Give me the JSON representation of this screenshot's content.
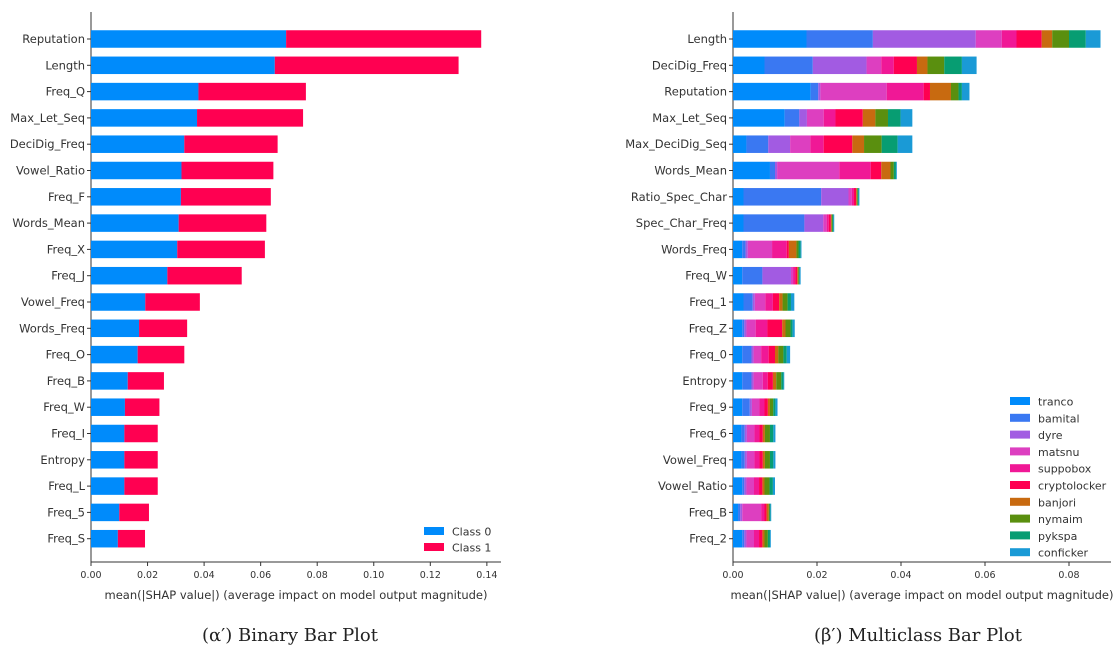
{
  "chart_data": [
    {
      "type": "bar",
      "orientation": "horizontal",
      "stacked": true,
      "caption": "(α′) Binary Bar Plot",
      "xlabel": "mean(|SHAP value|) (average impact on model output magnitude)",
      "xlim": [
        0,
        0.145
      ],
      "xticks": [
        "0.00",
        "0.02",
        "0.04",
        "0.06",
        "0.08",
        "0.10",
        "0.12",
        "0.14"
      ],
      "legend_position": "bottom-right",
      "categories": [
        "Reputation",
        "Length",
        "Freq_Q",
        "Max_Let_Seq",
        "DeciDig_Freq",
        "Vowel_Ratio",
        "Freq_F",
        "Words_Mean",
        "Freq_X",
        "Freq_J",
        "Vowel_Freq",
        "Words_Freq",
        "Freq_O",
        "Freq_B",
        "Freq_W",
        "Freq_I",
        "Entropy",
        "Freq_L",
        "Freq_5",
        "Freq_S"
      ],
      "series": [
        {
          "name": "Class 0",
          "color": "#008bfb",
          "values": [
            0.069,
            0.065,
            0.038,
            0.0375,
            0.033,
            0.032,
            0.0318,
            0.031,
            0.0305,
            0.027,
            0.0192,
            0.017,
            0.0165,
            0.013,
            0.012,
            0.0118,
            0.0118,
            0.0118,
            0.01,
            0.0095
          ]
        },
        {
          "name": "Class 1",
          "color": "#ff0051",
          "values": [
            0.069,
            0.065,
            0.038,
            0.0375,
            0.033,
            0.0325,
            0.0318,
            0.031,
            0.031,
            0.0263,
            0.0193,
            0.017,
            0.0165,
            0.0128,
            0.0122,
            0.0118,
            0.0118,
            0.0118,
            0.0105,
            0.0096
          ]
        }
      ]
    },
    {
      "type": "bar",
      "orientation": "horizontal",
      "stacked": true,
      "caption": "(β′) Multiclass Bar Plot",
      "xlabel": "mean(|SHAP value|) (average impact on model output magnitude)",
      "xlim": [
        0,
        0.09
      ],
      "xticks": [
        "0.00",
        "0.02",
        "0.04",
        "0.06",
        "0.08"
      ],
      "legend_position": "bottom-right",
      "categories": [
        "Length",
        "DeciDig_Freq",
        "Reputation",
        "Max_Let_Seq",
        "Max_DeciDig_Seq",
        "Words_Mean",
        "Ratio_Spec_Char",
        "Spec_Char_Freq",
        "Words_Freq",
        "Freq_W",
        "Freq_1",
        "Freq_Z",
        "Freq_0",
        "Entropy",
        "Freq_9",
        "Freq_6",
        "Vowel_Freq",
        "Vowel_Ratio",
        "Freq_B",
        "Freq_2"
      ],
      "series": [
        {
          "name": "tranco",
          "color": "#008bfb",
          "values": [
            0.0175,
            0.0075,
            0.0185,
            0.0123,
            0.0032,
            0.0088,
            0.0025,
            0.0025,
            0.0022,
            0.0022,
            0.0025,
            0.0022,
            0.0022,
            0.0022,
            0.0022,
            0.002,
            0.002,
            0.0022,
            0.0012,
            0.0022
          ]
        },
        {
          "name": "bamital",
          "color": "#3a78f2",
          "values": [
            0.0158,
            0.0115,
            0.0018,
            0.0035,
            0.0052,
            0.0012,
            0.0185,
            0.0145,
            0.0008,
            0.0048,
            0.0022,
            0.0005,
            0.0022,
            0.0022,
            0.0018,
            0.0008,
            0.0008,
            0.0005,
            0.0005,
            0.0005
          ]
        },
        {
          "name": "dyre",
          "color": "#a25be2",
          "values": [
            0.0245,
            0.0128,
            0.0005,
            0.0018,
            0.0052,
            0.0005,
            0.0065,
            0.0045,
            0.0005,
            0.0068,
            0.0005,
            0.0005,
            0.0005,
            0.0005,
            0.0005,
            0.0005,
            0.0005,
            0.0005,
            0.0005,
            0.0005
          ]
        },
        {
          "name": "matsnu",
          "color": "#dd3fc0",
          "values": [
            0.0062,
            0.0035,
            0.0158,
            0.004,
            0.0048,
            0.0148,
            0.0008,
            0.0008,
            0.0058,
            0.0005,
            0.0025,
            0.0022,
            0.0018,
            0.0022,
            0.0018,
            0.0018,
            0.0018,
            0.0018,
            0.0045,
            0.0018
          ]
        },
        {
          "name": "suppobox",
          "color": "#f01896",
          "values": [
            0.0035,
            0.003,
            0.0088,
            0.0028,
            0.0032,
            0.0075,
            0.0005,
            0.0005,
            0.0035,
            0.0005,
            0.0018,
            0.0028,
            0.0018,
            0.0012,
            0.0012,
            0.0012,
            0.0012,
            0.0012,
            0.0008,
            0.0012
          ]
        },
        {
          "name": "cryptolocker",
          "color": "#ff0051",
          "values": [
            0.006,
            0.0055,
            0.0015,
            0.0065,
            0.0068,
            0.0025,
            0.0005,
            0.0005,
            0.0005,
            0.0005,
            0.0015,
            0.0035,
            0.0015,
            0.0012,
            0.0008,
            0.0008,
            0.0008,
            0.0008,
            0.0005,
            0.0008
          ]
        },
        {
          "name": "banjori",
          "color": "#c86a10",
          "values": [
            0.0025,
            0.0025,
            0.005,
            0.003,
            0.0028,
            0.0022,
            0.0002,
            0.0002,
            0.0018,
            0.0002,
            0.0008,
            0.0008,
            0.0008,
            0.0008,
            0.0005,
            0.0005,
            0.0005,
            0.0005,
            0.0005,
            0.0005
          ]
        },
        {
          "name": "nymaim",
          "color": "#5a8f0f",
          "values": [
            0.004,
            0.004,
            0.0018,
            0.003,
            0.0042,
            0.0008,
            0.0002,
            0.0002,
            0.0005,
            0.0002,
            0.0012,
            0.0012,
            0.0012,
            0.0012,
            0.0008,
            0.0012,
            0.0012,
            0.0012,
            0.0002,
            0.0008
          ]
        },
        {
          "name": "pykspa",
          "color": "#079d72",
          "values": [
            0.004,
            0.0042,
            0.0008,
            0.003,
            0.0038,
            0.0005,
            0.0002,
            0.0002,
            0.0005,
            0.0002,
            0.0008,
            0.0005,
            0.0008,
            0.0005,
            0.0005,
            0.0008,
            0.0008,
            0.0008,
            0.0002,
            0.0005
          ]
        },
        {
          "name": "conficker",
          "color": "#1a9ad6",
          "values": [
            0.0035,
            0.0035,
            0.0018,
            0.0028,
            0.0035,
            0.0002,
            0.0002,
            0.0002,
            0.0002,
            0.0002,
            0.0008,
            0.0005,
            0.0008,
            0.0002,
            0.0005,
            0.0005,
            0.0005,
            0.0005,
            0.0002,
            0.0002
          ]
        }
      ]
    }
  ]
}
